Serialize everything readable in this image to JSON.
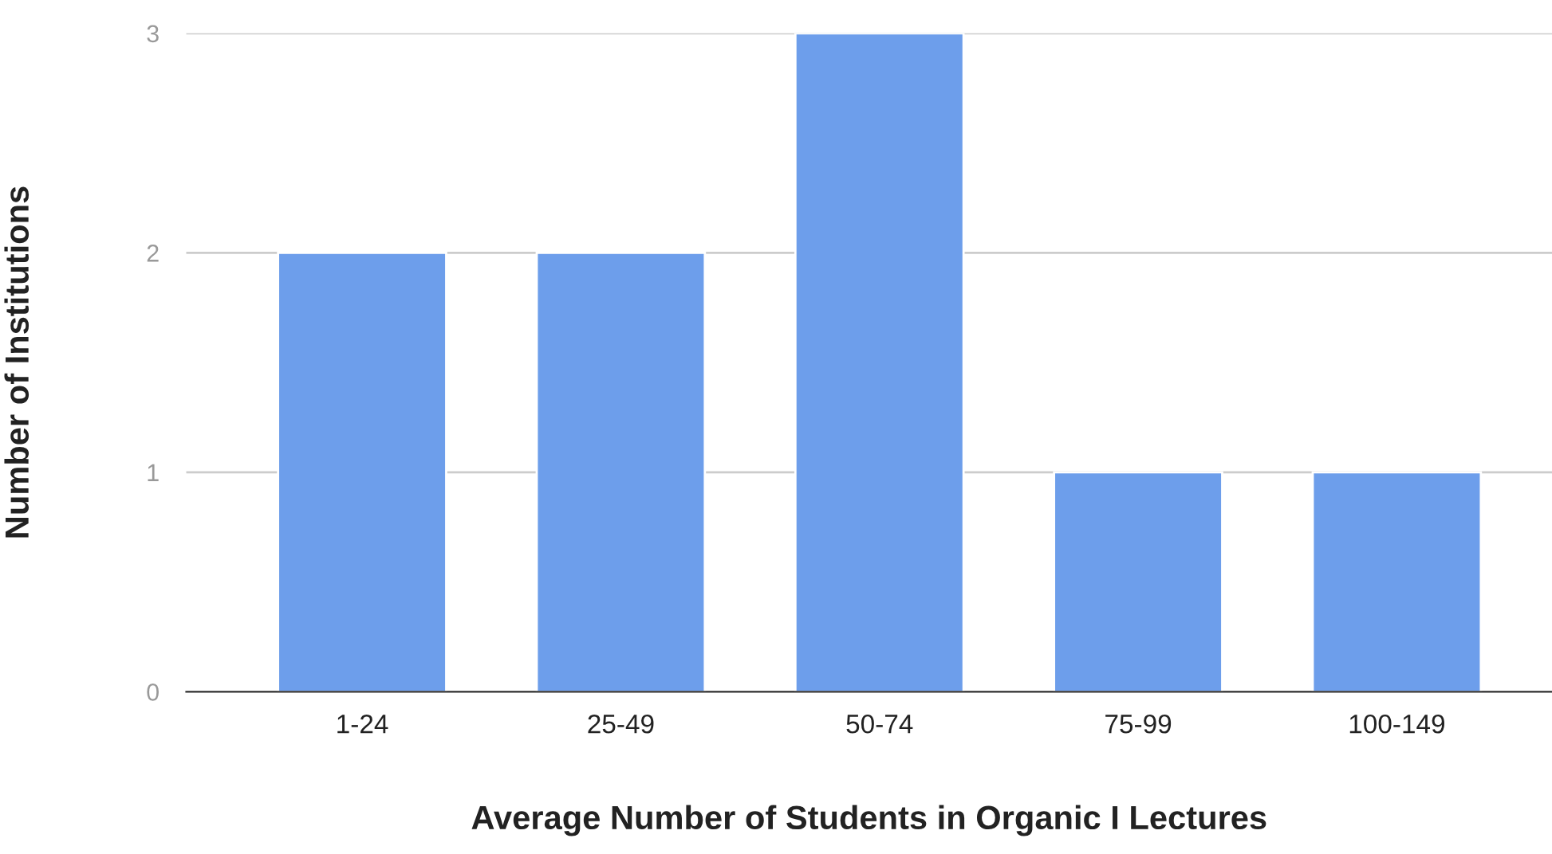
{
  "chart_data": {
    "type": "bar",
    "categories": [
      "1-24",
      "25-49",
      "50-74",
      "75-99",
      "100-149"
    ],
    "values": [
      2,
      2,
      3,
      1,
      1
    ],
    "color": "#6d9eeb",
    "xlabel": "Average Number of Students in Organic I Lectures",
    "ylabel": "Number of Institutions",
    "ylim": [
      0,
      3
    ],
    "yticks": [
      0,
      1,
      2,
      3
    ],
    "grid": "y",
    "legend": false
  }
}
